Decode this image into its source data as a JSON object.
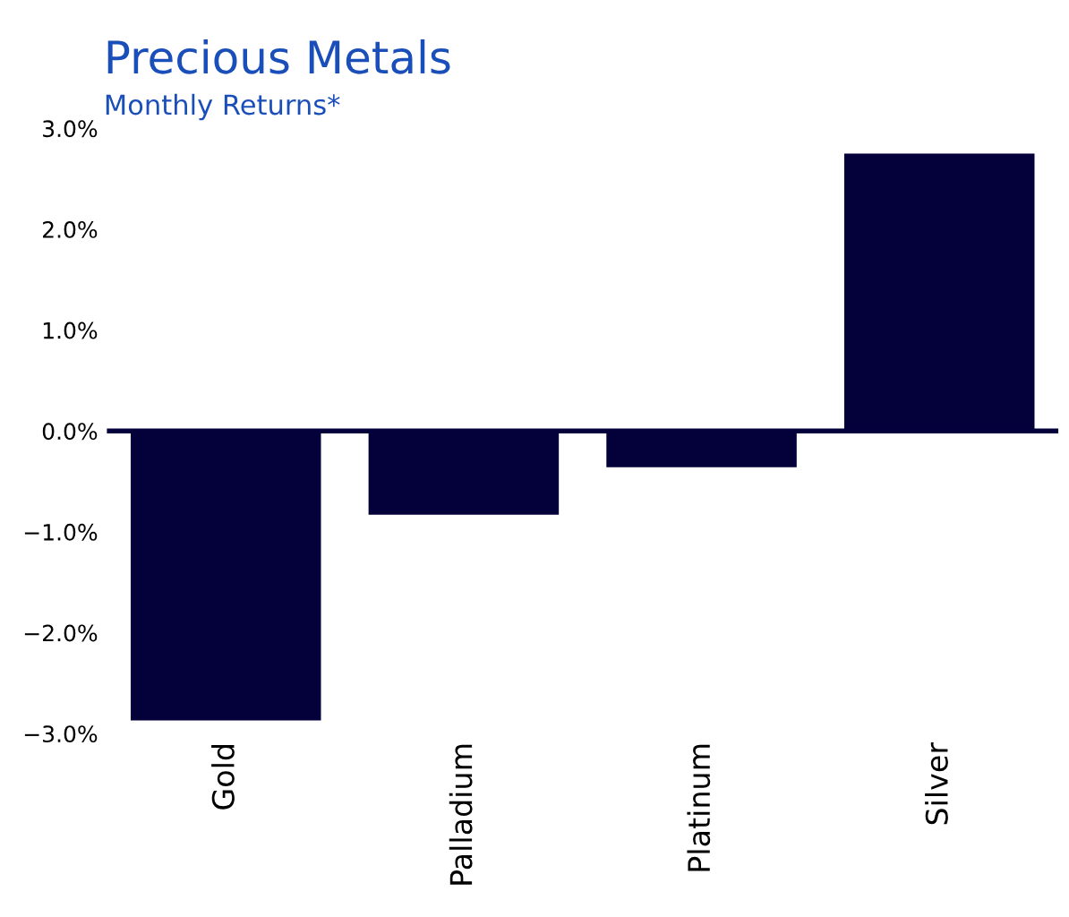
{
  "chart_data": {
    "type": "bar",
    "title": "Precious Metals",
    "subtitle": "Monthly Returns*",
    "categories": [
      "Gold",
      "Palladium",
      "Platinum",
      "Silver"
    ],
    "values": [
      -2.87,
      -0.83,
      -0.36,
      2.75
    ],
    "color": "#03003a",
    "ylim": [
      -3.0,
      3.0
    ],
    "yticks": [
      {
        "value": 3.0,
        "label": "3.0%"
      },
      {
        "value": 2.0,
        "label": "2.0%"
      },
      {
        "value": 1.0,
        "label": "1.0%"
      },
      {
        "value": 0.0,
        "label": "0.0%"
      },
      {
        "value": -1.0,
        "label": "−1.0%"
      },
      {
        "value": -2.0,
        "label": "−2.0%"
      },
      {
        "value": -3.0,
        "label": "−3.0%"
      }
    ],
    "ref_lines": [
      {
        "axis": "y",
        "value": 0,
        "color": "#03003a"
      }
    ],
    "grid": false
  }
}
